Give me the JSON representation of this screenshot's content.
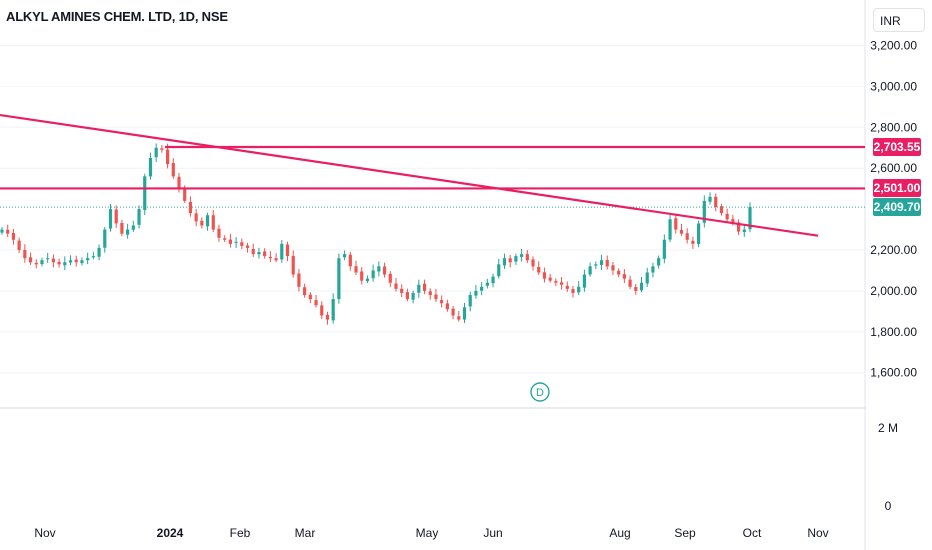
{
  "title": "ALKYL AMINES CHEM. LTD, 1D, NSE",
  "currency_label": "INR",
  "event_marker": "D",
  "colors": {
    "up": "#26a69a",
    "down": "#ef5350",
    "trendline": "#e91e63",
    "grid": "#f0f3fa",
    "last_price": "#26a69a",
    "level": "#e91e63"
  },
  "chart_data": {
    "type": "candlestick",
    "title": "ALKYL AMINES CHEM. LTD, 1D, NSE",
    "y_axis": {
      "ticks": [
        "3,200.00",
        "3,000.00",
        "2,800.00",
        "2,600.00",
        "2,200.00",
        "2,000.00",
        "1,800.00",
        "1,600.00"
      ],
      "tick_values": [
        3200,
        3000,
        2800,
        2600,
        2200,
        2000,
        1800,
        1600
      ],
      "range": [
        1300,
        3300
      ]
    },
    "volume_axis": {
      "ticks": [
        "2 M",
        "0"
      ]
    },
    "x_axis": {
      "ticks": [
        "Nov",
        "2024",
        "Feb",
        "Mar",
        "May",
        "Jun",
        "Aug",
        "Sep",
        "Oct",
        "Nov"
      ]
    },
    "levels": [
      {
        "label": "2,703.55",
        "value": 2703.55
      },
      {
        "label": "2,501.00",
        "value": 2501.0
      }
    ],
    "last_price": {
      "label": "2,409.70",
      "value": 2409.7
    },
    "trendline": {
      "start_value": 2860,
      "end_value": 2270
    },
    "close_series": [
      2300,
      2280,
      2250,
      2200,
      2160,
      2140,
      2130,
      2150,
      2160,
      2140,
      2130,
      2140,
      2150,
      2140,
      2150,
      2160,
      2170,
      2210,
      2300,
      2400,
      2330,
      2280,
      2300,
      2320,
      2400,
      2560,
      2650,
      2700,
      2690,
      2620,
      2560,
      2500,
      2440,
      2380,
      2340,
      2320,
      2370,
      2300,
      2260,
      2250,
      2230,
      2240,
      2220,
      2210,
      2180,
      2190,
      2170,
      2160,
      2150,
      2230,
      2170,
      2080,
      2020,
      1980,
      1960,
      1930,
      1880,
      1860,
      1960,
      2160,
      2180,
      2120,
      2090,
      2050,
      2060,
      2100,
      2120,
      2080,
      2040,
      2010,
      1990,
      1960,
      1990,
      2030,
      2000,
      1980,
      1960,
      1940,
      1910,
      1880,
      1860,
      1920,
      1980,
      2000,
      2020,
      2040,
      2070,
      2130,
      2160,
      2140,
      2170,
      2180,
      2150,
      2120,
      2090,
      2060,
      2050,
      2040,
      2030,
      2010,
      1990,
      2020,
      2080,
      2120,
      2130,
      2150,
      2120,
      2100,
      2080,
      2060,
      2020,
      2000,
      2040,
      2090,
      2120,
      2160,
      2250,
      2350,
      2300,
      2280,
      2250,
      2230,
      2330,
      2440,
      2460,
      2410,
      2380,
      2350,
      2330,
      2290,
      2300,
      2409.7
    ]
  }
}
